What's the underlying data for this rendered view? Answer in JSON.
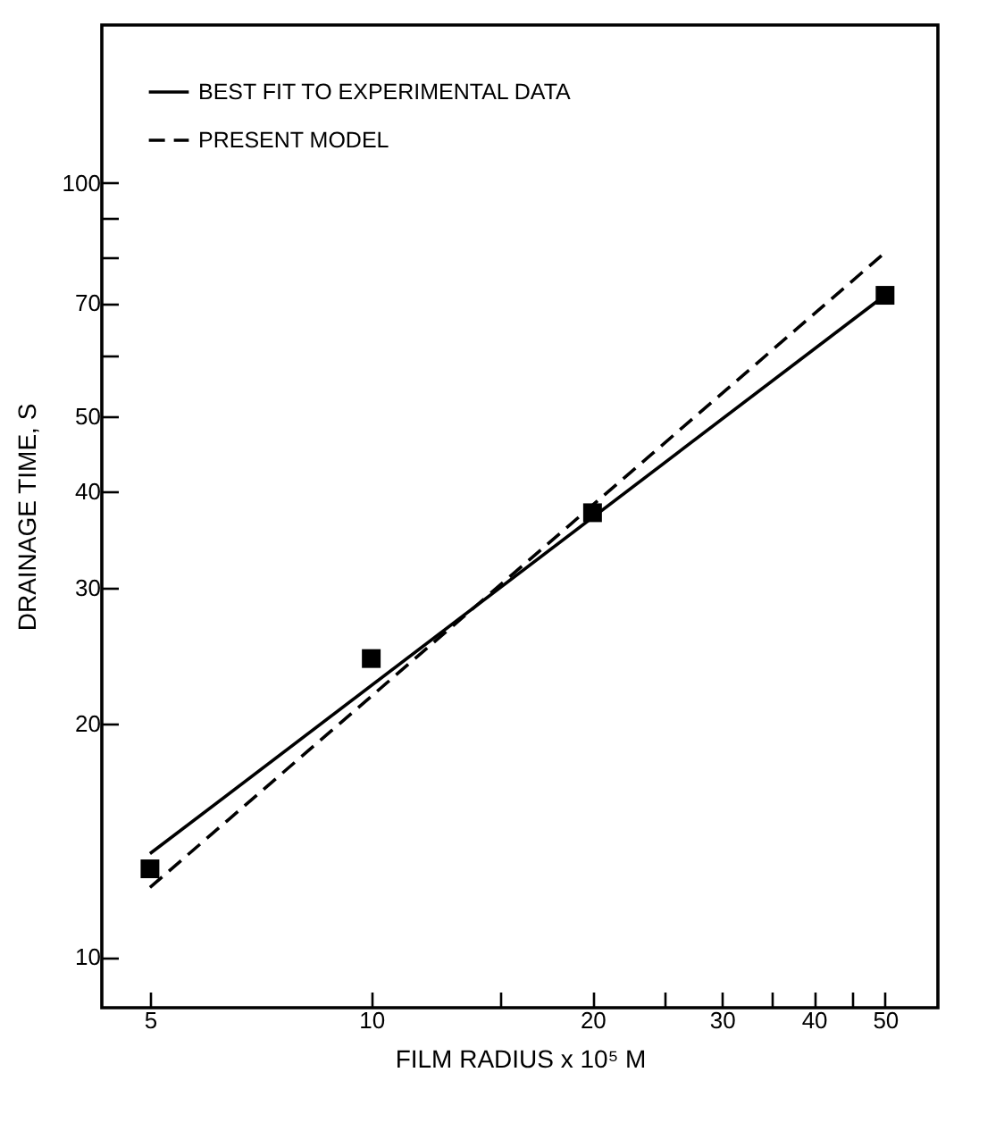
{
  "chart_data": {
    "type": "line",
    "xlabel": "FILM RADIUS x 10⁵ M",
    "ylabel": "DRAINAGE TIME, S",
    "log": "xy",
    "xlim": [
      4.3,
      59
    ],
    "ylim": [
      8.6,
      160
    ],
    "xticks": [
      5,
      10,
      {
        "value": 15,
        "label": null
      },
      20,
      {
        "value": 25,
        "label": null
      },
      30,
      {
        "value": 35,
        "label": null
      },
      40,
      {
        "value": 45,
        "label": null
      },
      50
    ],
    "yticks": [
      10,
      20,
      30,
      40,
      50,
      {
        "value": 60,
        "label": null
      },
      70,
      {
        "value": 80,
        "label": null
      },
      {
        "value": 90,
        "label": null
      },
      100
    ],
    "grid": false,
    "legend": "top left",
    "series": [
      {
        "name": "BEST FIT TO EXPERIMENTAL DATA",
        "line_style": "solid",
        "color": "#000000",
        "x": [
          5,
          50
        ],
        "values": [
          13.6,
          71.6
        ]
      },
      {
        "name": "PRESENT MODEL",
        "line_style": "dashed",
        "color": "#000000",
        "x": [
          5,
          50
        ],
        "values": [
          12.3,
          81.3
        ]
      },
      {
        "type": "scatter",
        "marker": "square",
        "color": "#000000",
        "x": [
          5,
          10,
          20,
          50
        ],
        "values": [
          13.0,
          24.3,
          37.5,
          71.6
        ]
      }
    ]
  }
}
